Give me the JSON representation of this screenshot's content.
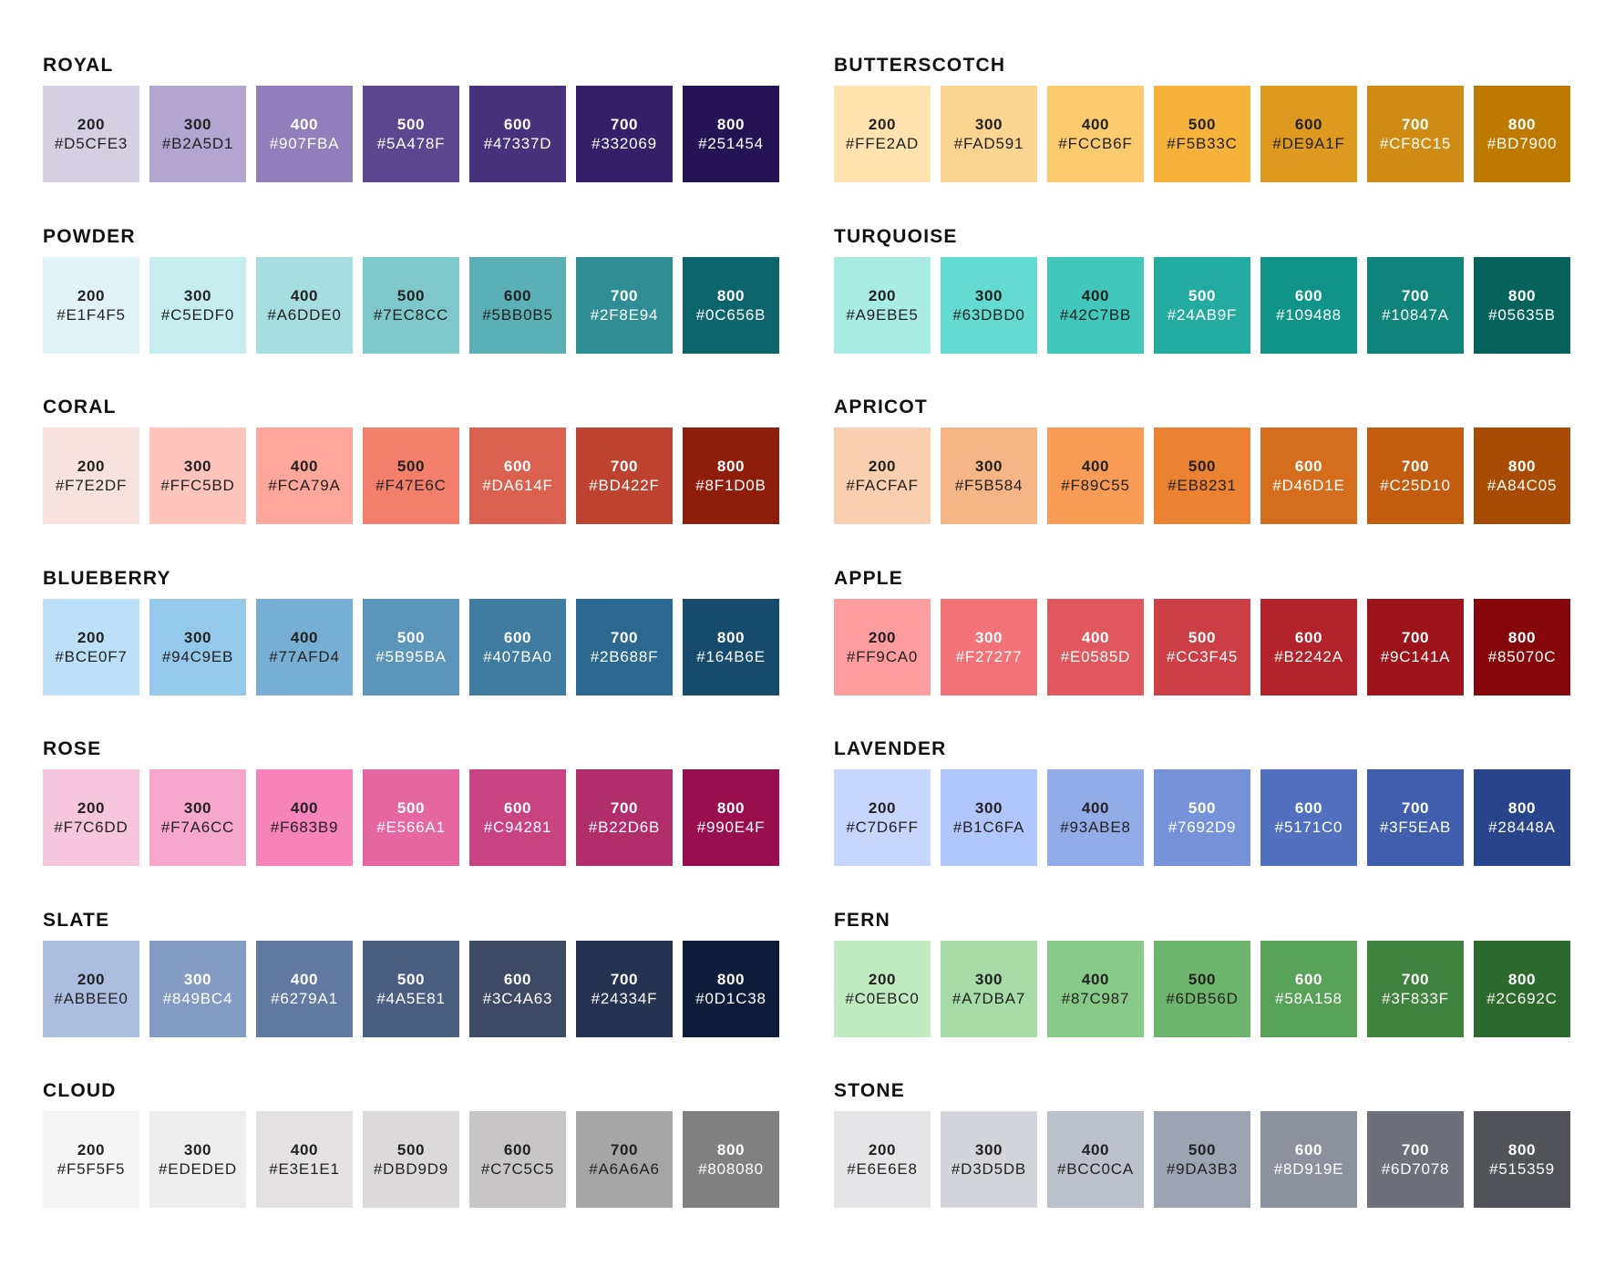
{
  "palettes": [
    {
      "name": "ROYAL",
      "swatches": [
        {
          "shade": "200",
          "hex": "#D5CFE3"
        },
        {
          "shade": "300",
          "hex": "#B2A5D1"
        },
        {
          "shade": "400",
          "hex": "#907FBA"
        },
        {
          "shade": "500",
          "hex": "#5A478F"
        },
        {
          "shade": "600",
          "hex": "#47337D"
        },
        {
          "shade": "700",
          "hex": "#332069"
        },
        {
          "shade": "800",
          "hex": "#251454"
        }
      ]
    },
    {
      "name": "POWDER",
      "swatches": [
        {
          "shade": "200",
          "hex": "#E1F4F5"
        },
        {
          "shade": "300",
          "hex": "#C5EDF0"
        },
        {
          "shade": "400",
          "hex": "#A6DDE0"
        },
        {
          "shade": "500",
          "hex": "#7EC8CC"
        },
        {
          "shade": "600",
          "hex": "#5BB0B5"
        },
        {
          "shade": "700",
          "hex": "#2F8E94"
        },
        {
          "shade": "800",
          "hex": "#0C656B"
        }
      ]
    },
    {
      "name": "CORAL",
      "swatches": [
        {
          "shade": "200",
          "hex": "#F7E2DF"
        },
        {
          "shade": "300",
          "hex": "#FFC5BD"
        },
        {
          "shade": "400",
          "hex": "#FCA79A"
        },
        {
          "shade": "500",
          "hex": "#F47E6C"
        },
        {
          "shade": "600",
          "hex": "#DA614F"
        },
        {
          "shade": "700",
          "hex": "#BD422F"
        },
        {
          "shade": "800",
          "hex": "#8F1D0B"
        }
      ]
    },
    {
      "name": "BLUEBERRY",
      "swatches": [
        {
          "shade": "200",
          "hex": "#BCE0F7"
        },
        {
          "shade": "300",
          "hex": "#94C9EB"
        },
        {
          "shade": "400",
          "hex": "#77AFD4"
        },
        {
          "shade": "500",
          "hex": "#5B95BA"
        },
        {
          "shade": "600",
          "hex": "#407BA0"
        },
        {
          "shade": "700",
          "hex": "#2B688F"
        },
        {
          "shade": "800",
          "hex": "#164B6E"
        }
      ]
    },
    {
      "name": "ROSE",
      "swatches": [
        {
          "shade": "200",
          "hex": "#F7C6DD"
        },
        {
          "shade": "300",
          "hex": "#F7A6CC"
        },
        {
          "shade": "400",
          "hex": "#F683B9"
        },
        {
          "shade": "500",
          "hex": "#E566A1"
        },
        {
          "shade": "600",
          "hex": "#C94281"
        },
        {
          "shade": "700",
          "hex": "#B22D6B"
        },
        {
          "shade": "800",
          "hex": "#990E4F"
        }
      ]
    },
    {
      "name": "SLATE",
      "swatches": [
        {
          "shade": "200",
          "hex": "#ABBEE0"
        },
        {
          "shade": "300",
          "hex": "#849BC4"
        },
        {
          "shade": "400",
          "hex": "#6279A1"
        },
        {
          "shade": "500",
          "hex": "#4A5E81"
        },
        {
          "shade": "600",
          "hex": "#3C4A63"
        },
        {
          "shade": "700",
          "hex": "#24334F"
        },
        {
          "shade": "800",
          "hex": "#0D1C38"
        }
      ]
    },
    {
      "name": "CLOUD",
      "swatches": [
        {
          "shade": "200",
          "hex": "#F5F5F5"
        },
        {
          "shade": "300",
          "hex": "#EDEDED"
        },
        {
          "shade": "400",
          "hex": "#E3E1E1"
        },
        {
          "shade": "500",
          "hex": "#DBD9D9"
        },
        {
          "shade": "600",
          "hex": "#C7C5C5"
        },
        {
          "shade": "700",
          "hex": "#A6A6A6"
        },
        {
          "shade": "800",
          "hex": "#808080"
        }
      ]
    },
    {
      "name": "BUTTERSCOTCH",
      "swatches": [
        {
          "shade": "200",
          "hex": "#FFE2AD"
        },
        {
          "shade": "300",
          "hex": "#FAD591"
        },
        {
          "shade": "400",
          "hex": "#FCCB6F"
        },
        {
          "shade": "500",
          "hex": "#F5B33C"
        },
        {
          "shade": "600",
          "hex": "#DE9A1F"
        },
        {
          "shade": "700",
          "hex": "#CF8C15"
        },
        {
          "shade": "800",
          "hex": "#BD7900"
        }
      ]
    },
    {
      "name": "TURQUOISE",
      "swatches": [
        {
          "shade": "200",
          "hex": "#A9EBE5"
        },
        {
          "shade": "300",
          "hex": "#63DBD0"
        },
        {
          "shade": "400",
          "hex": "#42C7BB"
        },
        {
          "shade": "500",
          "hex": "#24AB9F"
        },
        {
          "shade": "600",
          "hex": "#109488"
        },
        {
          "shade": "700",
          "hex": "#10847A"
        },
        {
          "shade": "800",
          "hex": "#05635B"
        }
      ]
    },
    {
      "name": "APRICOT",
      "swatches": [
        {
          "shade": "200",
          "hex": "#FACFAF"
        },
        {
          "shade": "300",
          "hex": "#F5B584"
        },
        {
          "shade": "400",
          "hex": "#F89C55"
        },
        {
          "shade": "500",
          "hex": "#EB8231"
        },
        {
          "shade": "600",
          "hex": "#D46D1E"
        },
        {
          "shade": "700",
          "hex": "#C25D10"
        },
        {
          "shade": "800",
          "hex": "#A84C05"
        }
      ]
    },
    {
      "name": "APPLE",
      "swatches": [
        {
          "shade": "200",
          "hex": "#FF9CA0"
        },
        {
          "shade": "300",
          "hex": "#F27277"
        },
        {
          "shade": "400",
          "hex": "#E0585D"
        },
        {
          "shade": "500",
          "hex": "#CC3F45"
        },
        {
          "shade": "600",
          "hex": "#B2242A"
        },
        {
          "shade": "700",
          "hex": "#9C141A"
        },
        {
          "shade": "800",
          "hex": "#85070C"
        }
      ]
    },
    {
      "name": "LAVENDER",
      "swatches": [
        {
          "shade": "200",
          "hex": "#C7D6FF"
        },
        {
          "shade": "300",
          "hex": "#B1C6FA"
        },
        {
          "shade": "400",
          "hex": "#93ABE8"
        },
        {
          "shade": "500",
          "hex": "#7692D9"
        },
        {
          "shade": "600",
          "hex": "#5171C0"
        },
        {
          "shade": "700",
          "hex": "#3F5EAB"
        },
        {
          "shade": "800",
          "hex": "#28448A"
        }
      ]
    },
    {
      "name": "FERN",
      "swatches": [
        {
          "shade": "200",
          "hex": "#C0EBC0"
        },
        {
          "shade": "300",
          "hex": "#A7DBA7"
        },
        {
          "shade": "400",
          "hex": "#87C987"
        },
        {
          "shade": "500",
          "hex": "#6DB56D"
        },
        {
          "shade": "600",
          "hex": "#58A158"
        },
        {
          "shade": "700",
          "hex": "#3F833F"
        },
        {
          "shade": "800",
          "hex": "#2C692C"
        }
      ]
    },
    {
      "name": "STONE",
      "swatches": [
        {
          "shade": "200",
          "hex": "#E6E6E8"
        },
        {
          "shade": "300",
          "hex": "#D3D5DB"
        },
        {
          "shade": "400",
          "hex": "#BCC0CA"
        },
        {
          "shade": "500",
          "hex": "#9DA3B3"
        },
        {
          "shade": "600",
          "hex": "#8D919E"
        },
        {
          "shade": "700",
          "hex": "#6D7078"
        },
        {
          "shade": "800",
          "hex": "#515359"
        }
      ]
    }
  ]
}
